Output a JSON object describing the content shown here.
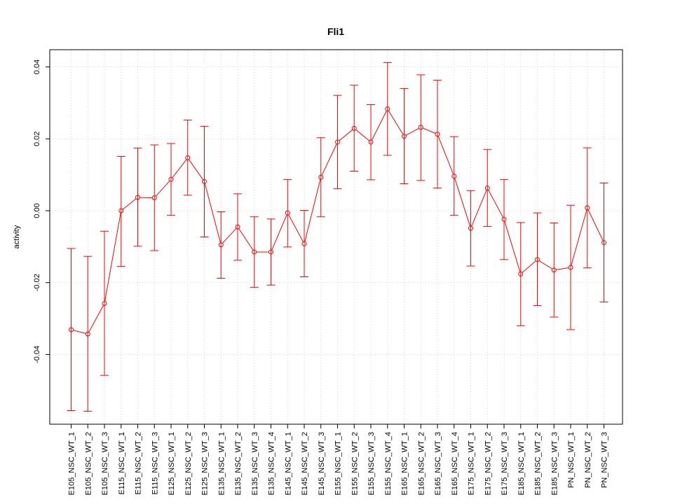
{
  "chart_data": {
    "type": "line",
    "title": "Fli1",
    "xlabel": "",
    "ylabel": "activity",
    "ylim": [
      -0.06,
      0.045
    ],
    "yticks": [
      -0.04,
      -0.02,
      0.0,
      0.02,
      0.04
    ],
    "ytick_labels": [
      "-0.04",
      "-0.02",
      "0.00",
      "0.02",
      "0.04"
    ],
    "grid": true,
    "color": "#ff0000",
    "categories": [
      "E105_NSC_WT_1",
      "E105_NSC_WT_2",
      "E105_NSC_WT_3",
      "E115_NSC_WT_1",
      "E115_NSC_WT_2",
      "E115_NSC_WT_3",
      "E125_NSC_WT_1",
      "E125_NSC_WT_2",
      "E125_NSC_WT_3",
      "E135_NSC_WT_1",
      "E135_NSC_WT_2",
      "E135_NSC_WT_3",
      "E135_NSC_WT_4",
      "E145_NSC_WT_1",
      "E145_NSC_WT_2",
      "E145_NSC_WT_3",
      "E155_NSC_WT_1",
      "E155_NSC_WT_2",
      "E155_NSC_WT_3",
      "E155_NSC_WT_4",
      "E165_NSC_WT_1",
      "E165_NSC_WT_2",
      "E165_NSC_WT_3",
      "E165_NSC_WT_4",
      "E175_NSC_WT_1",
      "E175_NSC_WT_2",
      "E175_NSC_WT_3",
      "E185_NSC_WT_1",
      "E185_NSC_WT_2",
      "E185_NSC_WT_3",
      "PN_NSC_WT_1",
      "PN_NSC_WT_2",
      "PN_NSC_WT_3"
    ],
    "values": [
      -0.0331,
      -0.0343,
      -0.0258,
      0.0,
      0.0037,
      0.0036,
      0.0087,
      0.0147,
      0.0081,
      -0.0095,
      -0.0045,
      -0.0115,
      -0.0115,
      -0.0006,
      -0.0092,
      0.0093,
      0.0191,
      0.0229,
      0.0191,
      0.0283,
      0.0207,
      0.0232,
      0.0213,
      0.0096,
      -0.0049,
      0.0063,
      -0.0024,
      -0.0176,
      -0.0136,
      -0.0165,
      -0.0158,
      0.0008,
      -0.0089
    ],
    "upper": [
      -0.0105,
      -0.0127,
      -0.0057,
      0.0151,
      0.0174,
      0.0183,
      0.0187,
      0.0252,
      0.0235,
      -0.0003,
      0.0047,
      -0.0017,
      -0.0023,
      0.0087,
      0.0001,
      0.0203,
      0.0321,
      0.0349,
      0.0295,
      0.0412,
      0.034,
      0.0378,
      0.0363,
      0.0206,
      0.0056,
      0.017,
      0.0087,
      -0.0033,
      -0.0006,
      -0.0034,
      0.0015,
      0.0175,
      0.0077
    ],
    "lower": [
      -0.0556,
      -0.0558,
      -0.0458,
      -0.0155,
      -0.0099,
      -0.0111,
      -0.0013,
      0.0043,
      -0.0073,
      -0.0188,
      -0.0138,
      -0.0213,
      -0.0207,
      -0.0101,
      -0.0184,
      -0.0017,
      0.0061,
      0.011,
      0.0086,
      0.0154,
      0.0075,
      0.0084,
      0.0063,
      -0.0013,
      -0.0154,
      -0.0044,
      -0.0136,
      -0.032,
      -0.0264,
      -0.0296,
      -0.0331,
      -0.0159,
      -0.0254
    ]
  }
}
